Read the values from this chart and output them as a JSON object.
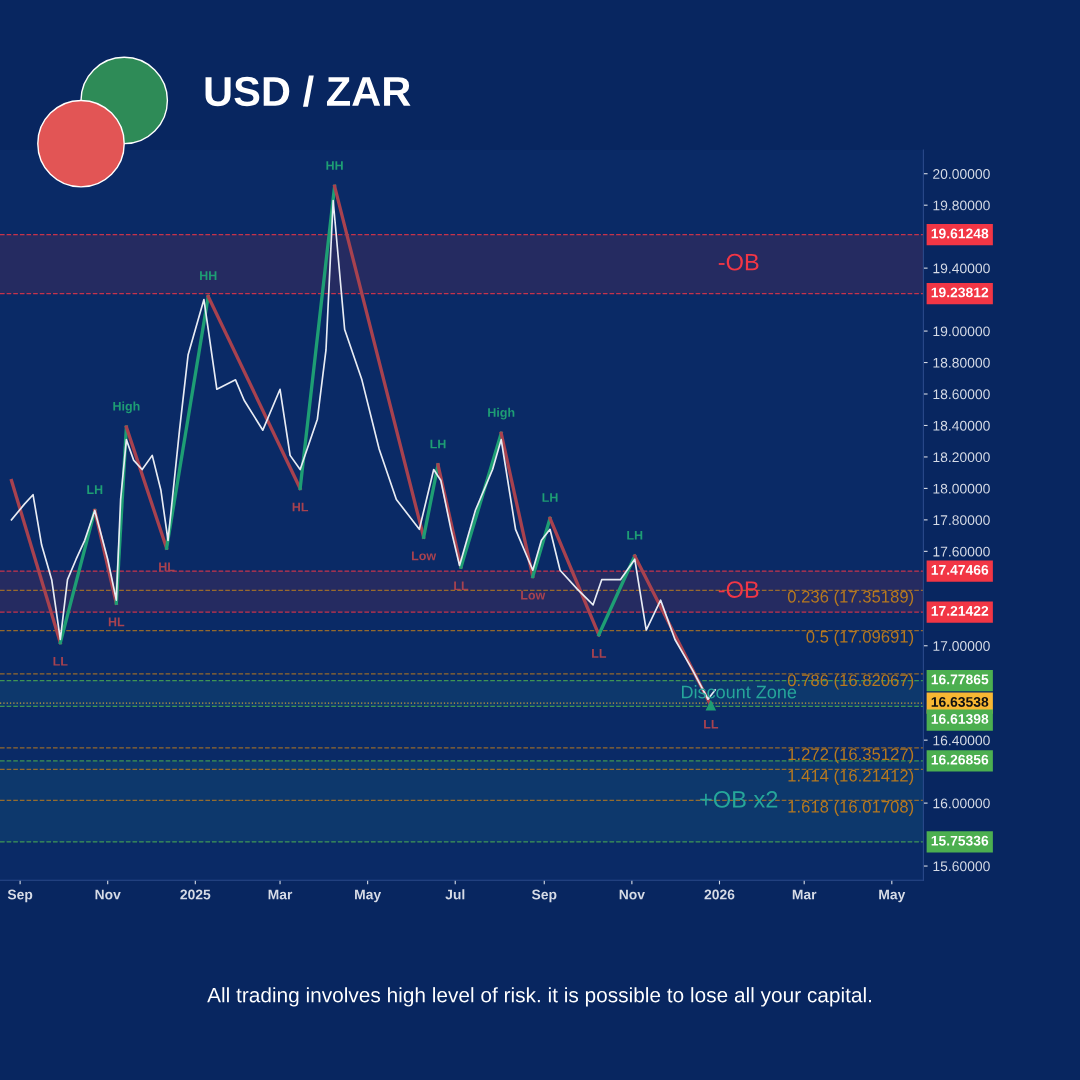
{
  "chart_data": {
    "type": "line",
    "title": "USD / ZAR",
    "xlim": [
      "2024-08-18",
      "2026-05-23"
    ],
    "ylim": [
      15.51,
      20.15
    ],
    "xticks": [
      {
        "value": "2024-09-01",
        "label": "Sep"
      },
      {
        "value": "2024-11-01",
        "label": "Nov"
      },
      {
        "value": "2025-01-01",
        "label": "2025"
      },
      {
        "value": "2025-03-01",
        "label": "Mar"
      },
      {
        "value": "2025-05-01",
        "label": "May"
      },
      {
        "value": "2025-07-01",
        "label": "Jul"
      },
      {
        "value": "2025-09-01",
        "label": "Sep"
      },
      {
        "value": "2025-11-01",
        "label": "Nov"
      },
      {
        "value": "2026-01-01",
        "label": "2026"
      },
      {
        "value": "2026-03-01",
        "label": "Mar"
      },
      {
        "value": "2026-05-01",
        "label": "May"
      }
    ],
    "yticks": [
      {
        "value": 20.0,
        "label": "20.00000"
      },
      {
        "value": 19.8,
        "label": "19.80000"
      },
      {
        "value": 19.4,
        "label": "19.40000"
      },
      {
        "value": 19.0,
        "label": "19.00000"
      },
      {
        "value": 18.8,
        "label": "18.80000"
      },
      {
        "value": 18.6,
        "label": "18.60000"
      },
      {
        "value": 18.4,
        "label": "18.40000"
      },
      {
        "value": 18.2,
        "label": "18.20000"
      },
      {
        "value": 18.0,
        "label": "18.00000"
      },
      {
        "value": 17.8,
        "label": "17.80000"
      },
      {
        "value": 17.6,
        "label": "17.60000"
      },
      {
        "value": 17.0,
        "label": "17.00000"
      },
      {
        "value": 16.4,
        "label": "16.40000"
      },
      {
        "value": 16.0,
        "label": "16.00000"
      },
      {
        "value": 15.6,
        "label": "15.60000"
      }
    ],
    "grid": false,
    "legend": false,
    "marker": "none",
    "line_style": "solid",
    "series": [
      {
        "color": "#e8ecf4",
        "x": [
          "2024-08-26",
          "2024-09-04",
          "2024-09-10",
          "2024-09-16",
          "2024-09-23",
          "2024-09-29",
          "2024-10-04",
          "2024-10-10",
          "2024-10-16",
          "2024-10-23",
          "2024-11-01",
          "2024-11-07",
          "2024-11-10",
          "2024-11-14",
          "2024-11-19",
          "2024-11-25",
          "2024-12-02",
          "2024-12-08",
          "2024-12-13",
          "2024-12-21",
          "2024-12-27",
          "2025-01-07",
          "2025-01-10",
          "2025-01-16",
          "2025-01-29",
          "2025-02-04",
          "2025-02-17",
          "2025-03-01",
          "2025-03-08",
          "2025-03-15",
          "2025-03-27",
          "2025-04-02",
          "2025-04-07",
          "2025-04-15",
          "2025-04-27",
          "2025-05-09",
          "2025-05-21",
          "2025-06-06",
          "2025-06-16",
          "2025-06-21",
          "2025-06-28",
          "2025-07-04",
          "2025-07-15",
          "2025-07-27",
          "2025-08-02",
          "2025-08-12",
          "2025-08-24",
          "2025-08-30",
          "2025-09-05",
          "2025-09-12",
          "2025-09-24",
          "2025-10-05",
          "2025-10-11",
          "2025-10-24",
          "2025-11-03",
          "2025-11-11",
          "2025-11-21",
          "2025-12-01",
          "2025-12-13",
          "2025-12-24",
          "2025-12-29"
        ],
        "values": [
          17.8,
          17.9,
          17.96,
          17.64,
          17.42,
          17.04,
          17.42,
          17.55,
          17.67,
          17.86,
          17.55,
          17.29,
          17.93,
          18.31,
          18.18,
          18.12,
          18.21,
          17.99,
          17.67,
          18.37,
          18.85,
          19.2,
          19.01,
          18.63,
          18.69,
          18.56,
          18.37,
          18.63,
          18.21,
          18.12,
          18.44,
          18.88,
          19.83,
          19.01,
          18.69,
          18.25,
          17.93,
          17.74,
          18.12,
          18.05,
          17.74,
          17.51,
          17.86,
          18.12,
          18.31,
          17.74,
          17.48,
          17.67,
          17.74,
          17.48,
          17.36,
          17.26,
          17.42,
          17.42,
          17.55,
          17.1,
          17.29,
          17.04,
          16.85,
          16.66,
          16.72
        ]
      },
      {
        "x": [
          "2024-08-26",
          "2024-09-29",
          "2024-10-23",
          "2024-11-07",
          "2024-11-14",
          "2024-12-12",
          "2025-01-10",
          "2025-03-15",
          "2025-04-08",
          "2025-06-09",
          "2025-06-19",
          "2025-07-05",
          "2025-08-02",
          "2025-08-24",
          "2025-09-05",
          "2025-10-09",
          "2025-11-03",
          "2025-12-26"
        ],
        "values": [
          18.05,
          17.02,
          17.86,
          17.27,
          18.39,
          17.62,
          19.22,
          18.0,
          19.92,
          17.69,
          18.15,
          17.5,
          18.35,
          17.44,
          17.81,
          17.07,
          17.57,
          16.62
        ],
        "colors": [
          "#a8424f",
          "#1e9e74",
          "#a8424f",
          "#1e9e74",
          "#a8424f",
          "#1e9e74",
          "#a8424f",
          "#1e9e74",
          "#a8424f",
          "#1e9e74",
          "#a8424f",
          "#1e9e74",
          "#a8424f",
          "#1e9e74",
          "#a8424f",
          "#1e9e74",
          "#a8424f",
          "#1e9e74"
        ]
      }
    ],
    "annotations": [
      {
        "text": "LL",
        "x": "2024-09-29",
        "y": 17.02
      },
      {
        "text": "LH",
        "x": "2024-10-23",
        "y": 17.86
      },
      {
        "text": "HL",
        "x": "2024-11-07",
        "y": 17.27
      },
      {
        "text": "High",
        "x": "2024-11-14",
        "y": 18.39
      },
      {
        "text": "HL",
        "x": "2024-12-12",
        "y": 17.62
      },
      {
        "text": "HH",
        "x": "2025-01-10",
        "y": 19.22
      },
      {
        "text": "HL",
        "x": "2025-03-15",
        "y": 18.0
      },
      {
        "text": "HH",
        "x": "2025-04-08",
        "y": 19.92
      },
      {
        "text": "Low",
        "x": "2025-06-09",
        "y": 17.69
      },
      {
        "text": "LH",
        "x": "2025-06-19",
        "y": 18.15
      },
      {
        "text": "LL",
        "x": "2025-07-05",
        "y": 17.5
      },
      {
        "text": "High",
        "x": "2025-08-02",
        "y": 18.35
      },
      {
        "text": "Low",
        "x": "2025-08-24",
        "y": 17.44
      },
      {
        "text": "LH",
        "x": "2025-09-05",
        "y": 17.81
      },
      {
        "text": "LL",
        "x": "2025-10-09",
        "y": 17.07
      },
      {
        "text": "LH",
        "x": "2025-11-03",
        "y": 17.57
      },
      {
        "text": "LL",
        "x": "2025-12-26",
        "y": 16.62
      },
      "All trading involves high level of risk. it is possible to lose all your capital."
    ],
    "bands": [
      {
        "axis": "y",
        "from": 19.23812,
        "to": 19.61248,
        "label": "-OB",
        "color": "#f23645"
      },
      {
        "axis": "y",
        "from": 17.21422,
        "to": 17.47466,
        "label": "-OB",
        "color": "#f23645"
      },
      {
        "axis": "y",
        "from": 16.61398,
        "to": 16.77865,
        "label": "Discount Zone",
        "color": "#26a69a"
      },
      {
        "axis": "y",
        "from": 15.75336,
        "to": 16.26856,
        "label": "+OB x2",
        "color": "#26a69a"
      }
    ],
    "ref_lines": [
      {
        "axis": "y",
        "value": 19.61248,
        "label": "19.61248",
        "color": "#f23645",
        "line_style": "dashed"
      },
      {
        "axis": "y",
        "value": 19.23812,
        "label": "19.23812",
        "color": "#f23645",
        "line_style": "dashed"
      },
      {
        "axis": "y",
        "value": 17.47466,
        "label": "17.47466",
        "color": "#f23645",
        "line_style": "dashed"
      },
      {
        "axis": "y",
        "value": 17.21422,
        "label": "17.21422",
        "color": "#f23645",
        "line_style": "dashed"
      },
      {
        "axis": "y",
        "value": 16.77865,
        "label": "16.77865",
        "color": "#4caf50",
        "line_style": "dashed"
      },
      {
        "axis": "y",
        "value": 16.63538,
        "label": "16.63538",
        "color": "#f7b733",
        "line_style": "dotted"
      },
      {
        "axis": "y",
        "value": 16.61398,
        "label": "16.61398",
        "color": "#4caf50",
        "line_style": "dashed"
      },
      {
        "axis": "y",
        "value": 16.26856,
        "label": "16.26856",
        "color": "#4caf50",
        "line_style": "dashed"
      },
      {
        "axis": "y",
        "value": 15.75336,
        "label": "15.75336",
        "color": "#4caf50",
        "line_style": "dashed"
      },
      {
        "axis": "y",
        "value": 17.35189,
        "label": "0.236 (17.35189)",
        "color": "#b7791f",
        "line_style": "dashed"
      },
      {
        "axis": "y",
        "value": 17.09691,
        "label": "0.5 (17.09691)",
        "color": "#b7791f",
        "line_style": "dashed"
      },
      {
        "axis": "y",
        "value": 16.82067,
        "label": "0.786 (16.82067)",
        "color": "#b7791f",
        "line_style": "dashed"
      },
      {
        "axis": "y",
        "value": 16.35127,
        "label": "1.272 (16.35127)",
        "color": "#b7791f",
        "line_style": "dashed"
      },
      {
        "axis": "y",
        "value": 16.21412,
        "label": "1.414 (16.21412)",
        "color": "#b7791f",
        "line_style": "dashed"
      },
      {
        "axis": "y",
        "value": 16.01708,
        "label": "1.618 (16.01708)",
        "color": "#b7791f",
        "line_style": "dashed"
      }
    ]
  }
}
